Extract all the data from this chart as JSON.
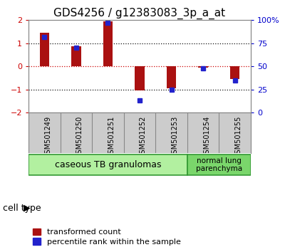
{
  "title": "GDS4256 / g12383083_3p_a_at",
  "samples": [
    "GSM501249",
    "GSM501250",
    "GSM501251",
    "GSM501252",
    "GSM501253",
    "GSM501254",
    "GSM501255"
  ],
  "transformed_counts": [
    1.45,
    0.88,
    1.95,
    -1.05,
    -0.95,
    -0.05,
    -0.55
  ],
  "percentile_ranks": [
    82,
    70,
    97,
    13,
    25,
    48,
    35
  ],
  "ylim_left": [
    -2,
    2
  ],
  "ylim_right_ticks": [
    0,
    25,
    50,
    75,
    100
  ],
  "ylim_right_labels": [
    "0",
    "25",
    "50",
    "75",
    "100%"
  ],
  "cell_groups": [
    {
      "label": "caseous TB granulomas",
      "span": [
        0,
        4
      ],
      "color": "#b2f0a0"
    },
    {
      "label": "normal lung\nparenchyma",
      "span": [
        5,
        6
      ],
      "color": "#7ad66b"
    }
  ],
  "bar_color": "#aa1111",
  "dot_color": "#2222cc",
  "dot_size": 5,
  "bar_width": 0.3,
  "legend_items": [
    {
      "label": "transformed count",
      "color": "#aa1111"
    },
    {
      "label": "percentile rank within the sample",
      "color": "#2222cc"
    }
  ],
  "zero_line_color": "#cc0000",
  "grid_line_color": "#111111",
  "tick_color_left": "#cc0000",
  "tick_color_right": "#0000cc",
  "sample_bg": "#cccccc",
  "title_fontsize": 11,
  "ytick_fontsize": 8,
  "sample_fontsize": 7,
  "cell_fontsize": 9,
  "legend_fontsize": 8
}
